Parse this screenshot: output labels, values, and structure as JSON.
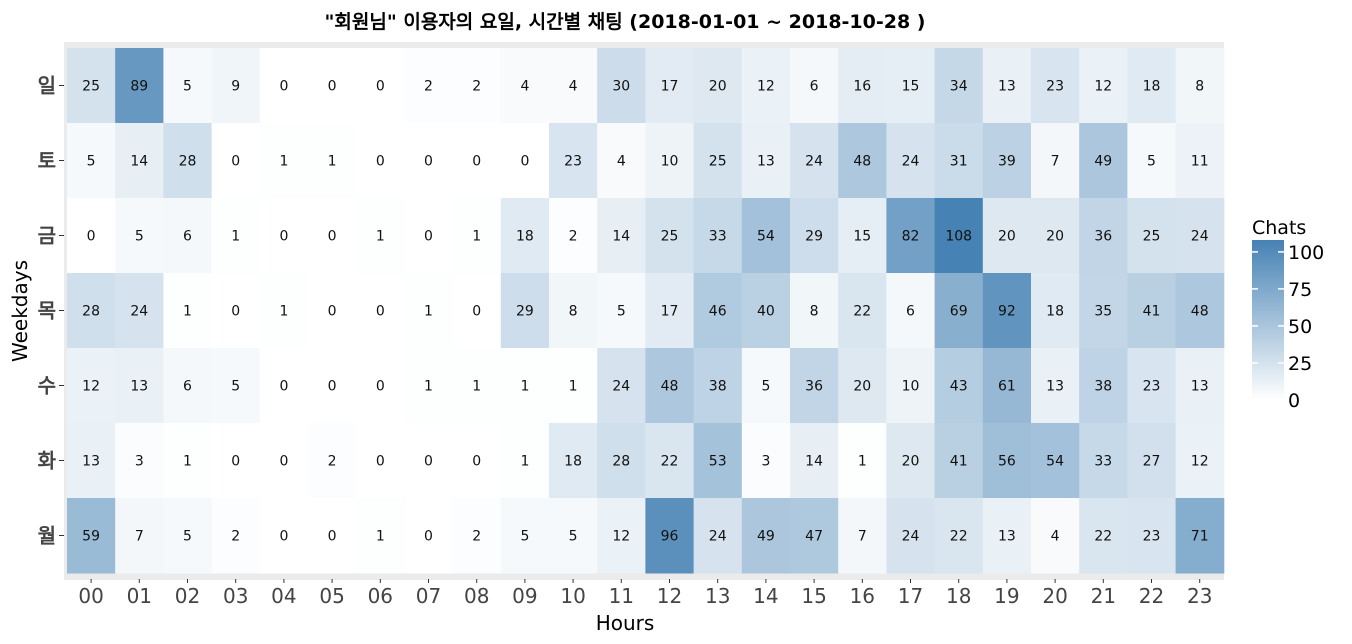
{
  "chart_data": {
    "type": "heatmap",
    "title": "\"회원님\" 이용자의 요일, 시간별 채팅 (2018-01-01  ~ 2018-10-28 )",
    "xlabel": "Hours",
    "ylabel": "Weekdays",
    "x_categories": [
      "00",
      "01",
      "02",
      "03",
      "04",
      "05",
      "06",
      "07",
      "08",
      "09",
      "10",
      "11",
      "12",
      "13",
      "14",
      "15",
      "16",
      "17",
      "18",
      "19",
      "20",
      "21",
      "22",
      "23"
    ],
    "y_categories": [
      "일",
      "토",
      "금",
      "목",
      "수",
      "화",
      "월"
    ],
    "values": [
      [
        25,
        89,
        5,
        9,
        0,
        0,
        0,
        2,
        2,
        4,
        4,
        30,
        17,
        20,
        12,
        6,
        16,
        15,
        34,
        13,
        23,
        12,
        18,
        8
      ],
      [
        5,
        14,
        28,
        0,
        1,
        1,
        0,
        0,
        0,
        0,
        23,
        4,
        10,
        25,
        13,
        24,
        48,
        24,
        31,
        39,
        7,
        49,
        5,
        11
      ],
      [
        0,
        5,
        6,
        1,
        0,
        0,
        1,
        0,
        1,
        18,
        2,
        14,
        25,
        33,
        54,
        29,
        15,
        82,
        108,
        20,
        20,
        36,
        25,
        24
      ],
      [
        28,
        24,
        1,
        0,
        1,
        0,
        0,
        1,
        0,
        29,
        8,
        5,
        17,
        46,
        40,
        8,
        22,
        6,
        69,
        92,
        18,
        35,
        41,
        48
      ],
      [
        12,
        13,
        6,
        5,
        0,
        0,
        0,
        1,
        1,
        1,
        1,
        24,
        48,
        38,
        5,
        36,
        20,
        10,
        43,
        61,
        13,
        38,
        23,
        13
      ],
      [
        13,
        3,
        1,
        0,
        0,
        2,
        0,
        0,
        0,
        1,
        18,
        28,
        22,
        53,
        3,
        14,
        1,
        20,
        41,
        56,
        54,
        33,
        27,
        12
      ],
      [
        59,
        7,
        5,
        2,
        0,
        0,
        1,
        0,
        2,
        5,
        5,
        12,
        96,
        24,
        49,
        47,
        7,
        24,
        22,
        13,
        4,
        22,
        23,
        71
      ]
    ],
    "legend": {
      "title": "Chats",
      "ticks": [
        100,
        75,
        50,
        25,
        0
      ],
      "placement": "right"
    },
    "color_low": "#ffffff",
    "color_high": "#4682b4",
    "value_range": [
      0,
      108
    ],
    "panel_background": "#ebebeb"
  }
}
